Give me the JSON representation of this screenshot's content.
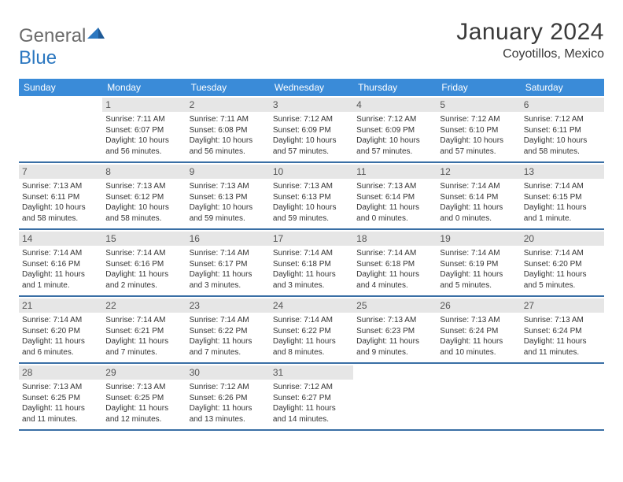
{
  "logo": {
    "prefix": "General",
    "suffix": "Blue"
  },
  "header": {
    "month_title": "January 2024",
    "location": "Coyotillos, Mexico"
  },
  "colors": {
    "header_bg": "#3a8bd8",
    "header_text": "#ffffff",
    "row_divider": "#3a6fa5",
    "daynum_bg": "#e6e6e6",
    "daynum_text": "#555555",
    "body_text": "#333333",
    "logo_gray": "#6b6b6b",
    "logo_blue": "#2b77c0"
  },
  "day_headers": [
    "Sunday",
    "Monday",
    "Tuesday",
    "Wednesday",
    "Thursday",
    "Friday",
    "Saturday"
  ],
  "weeks": [
    [
      {
        "empty": true
      },
      {
        "num": "1",
        "sunrise": "Sunrise: 7:11 AM",
        "sunset": "Sunset: 6:07 PM",
        "daylight": "Daylight: 10 hours and 56 minutes."
      },
      {
        "num": "2",
        "sunrise": "Sunrise: 7:11 AM",
        "sunset": "Sunset: 6:08 PM",
        "daylight": "Daylight: 10 hours and 56 minutes."
      },
      {
        "num": "3",
        "sunrise": "Sunrise: 7:12 AM",
        "sunset": "Sunset: 6:09 PM",
        "daylight": "Daylight: 10 hours and 57 minutes."
      },
      {
        "num": "4",
        "sunrise": "Sunrise: 7:12 AM",
        "sunset": "Sunset: 6:09 PM",
        "daylight": "Daylight: 10 hours and 57 minutes."
      },
      {
        "num": "5",
        "sunrise": "Sunrise: 7:12 AM",
        "sunset": "Sunset: 6:10 PM",
        "daylight": "Daylight: 10 hours and 57 minutes."
      },
      {
        "num": "6",
        "sunrise": "Sunrise: 7:12 AM",
        "sunset": "Sunset: 6:11 PM",
        "daylight": "Daylight: 10 hours and 58 minutes."
      }
    ],
    [
      {
        "num": "7",
        "sunrise": "Sunrise: 7:13 AM",
        "sunset": "Sunset: 6:11 PM",
        "daylight": "Daylight: 10 hours and 58 minutes."
      },
      {
        "num": "8",
        "sunrise": "Sunrise: 7:13 AM",
        "sunset": "Sunset: 6:12 PM",
        "daylight": "Daylight: 10 hours and 58 minutes."
      },
      {
        "num": "9",
        "sunrise": "Sunrise: 7:13 AM",
        "sunset": "Sunset: 6:13 PM",
        "daylight": "Daylight: 10 hours and 59 minutes."
      },
      {
        "num": "10",
        "sunrise": "Sunrise: 7:13 AM",
        "sunset": "Sunset: 6:13 PM",
        "daylight": "Daylight: 10 hours and 59 minutes."
      },
      {
        "num": "11",
        "sunrise": "Sunrise: 7:13 AM",
        "sunset": "Sunset: 6:14 PM",
        "daylight": "Daylight: 11 hours and 0 minutes."
      },
      {
        "num": "12",
        "sunrise": "Sunrise: 7:14 AM",
        "sunset": "Sunset: 6:14 PM",
        "daylight": "Daylight: 11 hours and 0 minutes."
      },
      {
        "num": "13",
        "sunrise": "Sunrise: 7:14 AM",
        "sunset": "Sunset: 6:15 PM",
        "daylight": "Daylight: 11 hours and 1 minute."
      }
    ],
    [
      {
        "num": "14",
        "sunrise": "Sunrise: 7:14 AM",
        "sunset": "Sunset: 6:16 PM",
        "daylight": "Daylight: 11 hours and 1 minute."
      },
      {
        "num": "15",
        "sunrise": "Sunrise: 7:14 AM",
        "sunset": "Sunset: 6:16 PM",
        "daylight": "Daylight: 11 hours and 2 minutes."
      },
      {
        "num": "16",
        "sunrise": "Sunrise: 7:14 AM",
        "sunset": "Sunset: 6:17 PM",
        "daylight": "Daylight: 11 hours and 3 minutes."
      },
      {
        "num": "17",
        "sunrise": "Sunrise: 7:14 AM",
        "sunset": "Sunset: 6:18 PM",
        "daylight": "Daylight: 11 hours and 3 minutes."
      },
      {
        "num": "18",
        "sunrise": "Sunrise: 7:14 AM",
        "sunset": "Sunset: 6:18 PM",
        "daylight": "Daylight: 11 hours and 4 minutes."
      },
      {
        "num": "19",
        "sunrise": "Sunrise: 7:14 AM",
        "sunset": "Sunset: 6:19 PM",
        "daylight": "Daylight: 11 hours and 5 minutes."
      },
      {
        "num": "20",
        "sunrise": "Sunrise: 7:14 AM",
        "sunset": "Sunset: 6:20 PM",
        "daylight": "Daylight: 11 hours and 5 minutes."
      }
    ],
    [
      {
        "num": "21",
        "sunrise": "Sunrise: 7:14 AM",
        "sunset": "Sunset: 6:20 PM",
        "daylight": "Daylight: 11 hours and 6 minutes."
      },
      {
        "num": "22",
        "sunrise": "Sunrise: 7:14 AM",
        "sunset": "Sunset: 6:21 PM",
        "daylight": "Daylight: 11 hours and 7 minutes."
      },
      {
        "num": "23",
        "sunrise": "Sunrise: 7:14 AM",
        "sunset": "Sunset: 6:22 PM",
        "daylight": "Daylight: 11 hours and 7 minutes."
      },
      {
        "num": "24",
        "sunrise": "Sunrise: 7:14 AM",
        "sunset": "Sunset: 6:22 PM",
        "daylight": "Daylight: 11 hours and 8 minutes."
      },
      {
        "num": "25",
        "sunrise": "Sunrise: 7:13 AM",
        "sunset": "Sunset: 6:23 PM",
        "daylight": "Daylight: 11 hours and 9 minutes."
      },
      {
        "num": "26",
        "sunrise": "Sunrise: 7:13 AM",
        "sunset": "Sunset: 6:24 PM",
        "daylight": "Daylight: 11 hours and 10 minutes."
      },
      {
        "num": "27",
        "sunrise": "Sunrise: 7:13 AM",
        "sunset": "Sunset: 6:24 PM",
        "daylight": "Daylight: 11 hours and 11 minutes."
      }
    ],
    [
      {
        "num": "28",
        "sunrise": "Sunrise: 7:13 AM",
        "sunset": "Sunset: 6:25 PM",
        "daylight": "Daylight: 11 hours and 11 minutes."
      },
      {
        "num": "29",
        "sunrise": "Sunrise: 7:13 AM",
        "sunset": "Sunset: 6:25 PM",
        "daylight": "Daylight: 11 hours and 12 minutes."
      },
      {
        "num": "30",
        "sunrise": "Sunrise: 7:12 AM",
        "sunset": "Sunset: 6:26 PM",
        "daylight": "Daylight: 11 hours and 13 minutes."
      },
      {
        "num": "31",
        "sunrise": "Sunrise: 7:12 AM",
        "sunset": "Sunset: 6:27 PM",
        "daylight": "Daylight: 11 hours and 14 minutes."
      },
      {
        "empty": true
      },
      {
        "empty": true
      },
      {
        "empty": true
      }
    ]
  ]
}
